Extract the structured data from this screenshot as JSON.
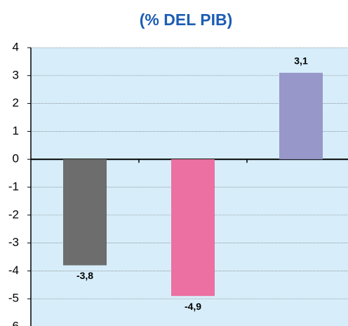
{
  "chart_data": {
    "type": "bar",
    "title": "(% DEL PIB)",
    "categories": [
      null,
      null,
      null
    ],
    "series": [
      {
        "values": [
          -3.8,
          -4.9,
          3.1
        ],
        "value_labels": [
          "-3,8",
          "-4,9",
          "3,1"
        ],
        "colors": [
          "#6d6d6d",
          "#ec70a1",
          "#9797c9"
        ]
      }
    ],
    "ylim": [
      -6,
      4
    ],
    "yticks": [
      -6,
      -5,
      -4,
      -3,
      -2,
      -1,
      0,
      1,
      2,
      3,
      4
    ],
    "grid": true
  }
}
